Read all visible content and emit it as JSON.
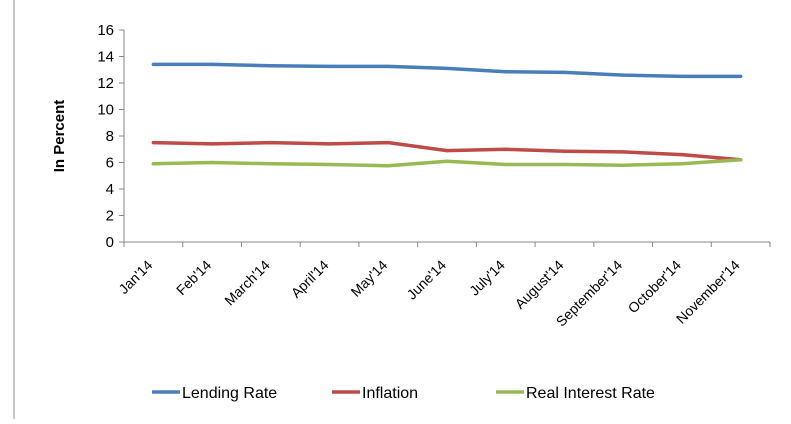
{
  "chart_data": {
    "type": "line",
    "title": "",
    "xlabel": "",
    "ylabel": "In Percent",
    "ylim": [
      0,
      16
    ],
    "yticks": [
      0,
      2,
      4,
      6,
      8,
      10,
      12,
      14,
      16
    ],
    "grid": false,
    "legend_position": "bottom",
    "categories": [
      "Jan'14",
      "Feb'14",
      "March'14",
      "April'14",
      "May'14",
      "June'14",
      "July'14",
      "August'14",
      "September'14",
      "October'14",
      "November'14"
    ],
    "series": [
      {
        "name": "Lending Rate",
        "color": "#4a7ebb",
        "values": [
          13.4,
          13.4,
          13.3,
          13.25,
          13.25,
          13.1,
          12.85,
          12.8,
          12.6,
          12.5,
          12.5
        ]
      },
      {
        "name": "Inflation",
        "color": "#be4b48",
        "values": [
          7.5,
          7.4,
          7.5,
          7.4,
          7.5,
          6.9,
          7.0,
          6.85,
          6.8,
          6.6,
          6.2
        ]
      },
      {
        "name": "Real Interest Rate",
        "color": "#98b954",
        "values": [
          5.9,
          6.0,
          5.9,
          5.85,
          5.75,
          6.1,
          5.85,
          5.85,
          5.8,
          5.9,
          6.2
        ]
      }
    ]
  }
}
